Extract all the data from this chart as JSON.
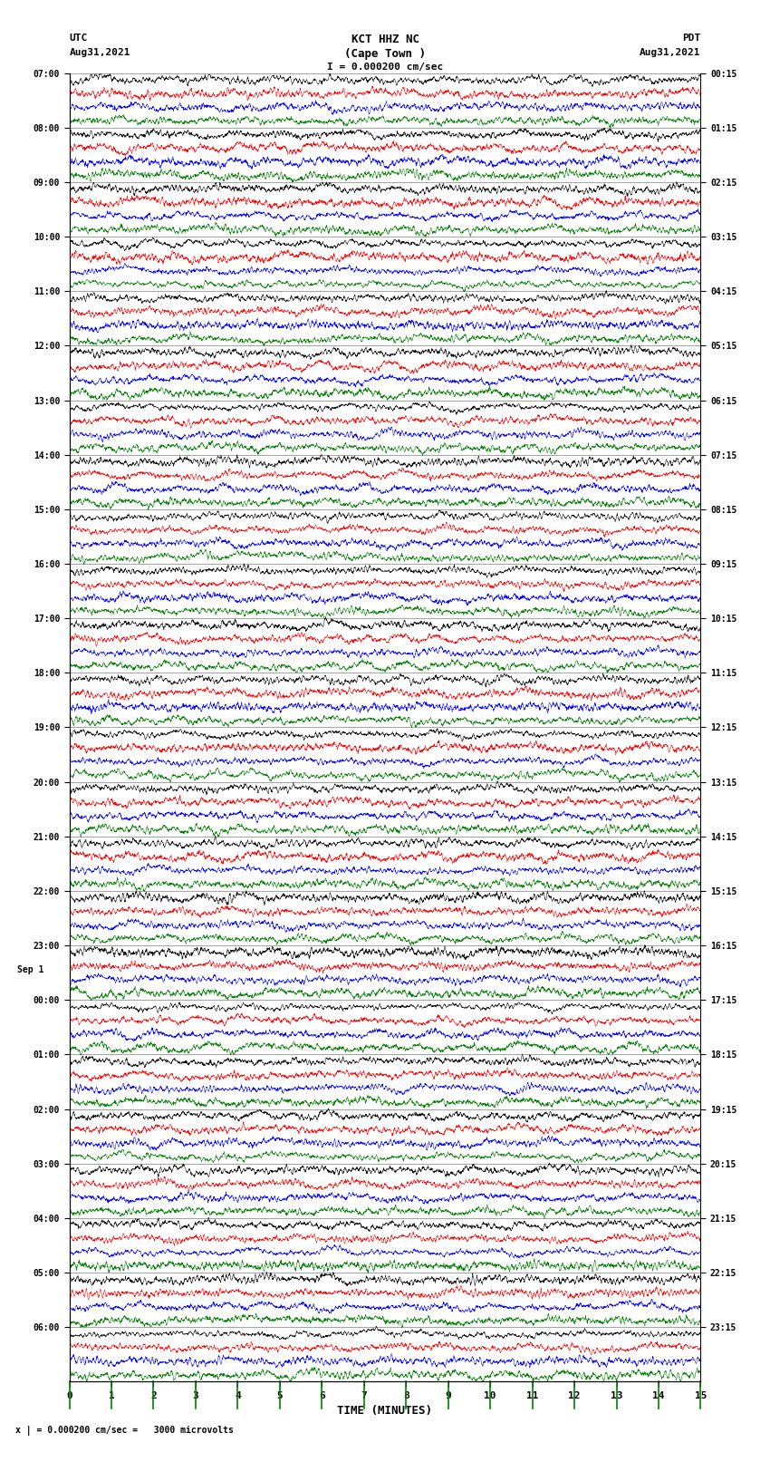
{
  "title_line1": "KCT HHZ NC",
  "title_line2": "(Cape Town )",
  "title_line3": "I = 0.000200 cm/sec",
  "left_label_top": "UTC",
  "left_label_date": "Aug31,2021",
  "right_label_top": "PDT",
  "right_label_date": "Aug31,2021",
  "bottom_label": "TIME (MINUTES)",
  "bottom_note": "x | = 0.000200 cm/sec =   3000 microvolts",
  "num_rows": 24,
  "display_minutes": 15,
  "colors_order": [
    "black",
    "red",
    "blue",
    "green"
  ],
  "bg_color": "white",
  "fig_width": 8.5,
  "fig_height": 16.13,
  "dpi": 100,
  "left_ytick_labels": [
    "07:00",
    "08:00",
    "09:00",
    "10:00",
    "11:00",
    "12:00",
    "13:00",
    "14:00",
    "15:00",
    "16:00",
    "17:00",
    "18:00",
    "19:00",
    "20:00",
    "21:00",
    "22:00",
    "23:00",
    "00:00",
    "01:00",
    "02:00",
    "03:00",
    "04:00",
    "05:00",
    "06:00"
  ],
  "right_ytick_labels": [
    "00:15",
    "01:15",
    "02:15",
    "03:15",
    "04:15",
    "05:15",
    "06:15",
    "07:15",
    "08:15",
    "09:15",
    "10:15",
    "11:15",
    "12:15",
    "13:15",
    "14:15",
    "15:15",
    "16:15",
    "17:15",
    "18:15",
    "19:15",
    "20:15",
    "21:15",
    "22:15",
    "23:15"
  ],
  "sep1_label": "Sep 1",
  "sep1_row_index": 17,
  "random_seed": 12345,
  "samples_per_row": 3000,
  "signal_amplitude": 0.48,
  "sub_rows": 4,
  "sub_row_colors": [
    "black",
    "red",
    "blue",
    "green"
  ]
}
